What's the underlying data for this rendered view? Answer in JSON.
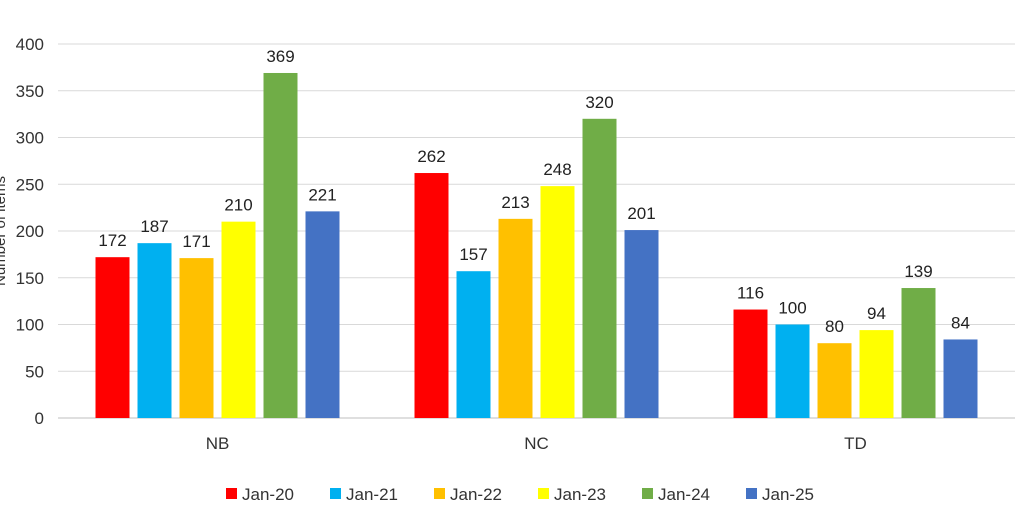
{
  "chart_data": {
    "type": "bar",
    "title": "",
    "xlabel": "",
    "ylabel": "Number of items",
    "ylim": [
      0,
      400
    ],
    "y_ticks": [
      0,
      50,
      100,
      150,
      200,
      250,
      300,
      350,
      400
    ],
    "grid": true,
    "legend_position": "bottom",
    "categories": [
      "NB",
      "NC",
      "TD"
    ],
    "series": [
      {
        "name": "Jan-20",
        "color": "#ff0000",
        "values": [
          172,
          262,
          116
        ]
      },
      {
        "name": "Jan-21",
        "color": "#00b0f0",
        "values": [
          187,
          157,
          100
        ]
      },
      {
        "name": "Jan-22",
        "color": "#ffc000",
        "values": [
          171,
          213,
          80
        ]
      },
      {
        "name": "Jan-23",
        "color": "#ffff00",
        "values": [
          210,
          248,
          94
        ]
      },
      {
        "name": "Jan-24",
        "color": "#70ad47",
        "values": [
          369,
          320,
          139
        ]
      },
      {
        "name": "Jan-25",
        "color": "#4472c4",
        "values": [
          221,
          201,
          84
        ]
      }
    ]
  }
}
